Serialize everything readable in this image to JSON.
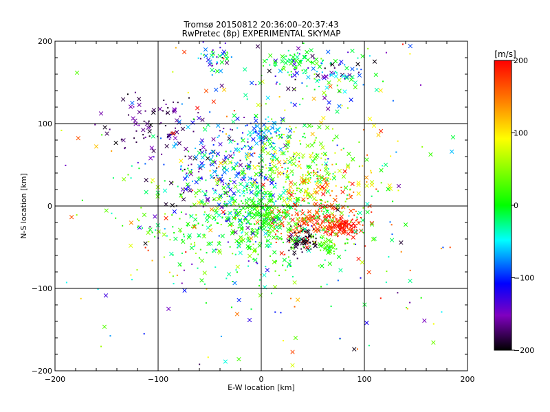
{
  "chart_data": {
    "type": "scatter",
    "title": "Tromsø 20150812 20:36:00–20:37:43",
    "subtitle": "RwPretec (8p) EXPERIMENTAL SKYMAP",
    "xlabel": "E-W location [km]",
    "ylabel": "N-S location [km]",
    "xlim": [
      -200,
      200
    ],
    "ylim": [
      -200,
      200
    ],
    "xticks": [
      "−200",
      "−100",
      "0",
      "100",
      "200"
    ],
    "yticks": [
      "−200",
      "−100",
      "0",
      "100",
      "200"
    ],
    "grid": true,
    "colorbar": {
      "label": "[m/s]",
      "range": [
        -200,
        200
      ],
      "ticks": [
        "200",
        "100",
        "0",
        "−100",
        "−200"
      ],
      "colormap": "rainbow (black → purple → blue → cyan → green → yellow → red)"
    },
    "markers": [
      "cross",
      "dot"
    ],
    "clusters": [
      {
        "x": -45,
        "y": 180,
        "sx": 8,
        "sy": 8,
        "n": 40,
        "v": [
          -200,
          80
        ]
      },
      {
        "x": 60,
        "y": 160,
        "sx": 30,
        "sy": 15,
        "n": 120,
        "v": [
          -200,
          50
        ]
      },
      {
        "x": 35,
        "y": 175,
        "sx": 15,
        "sy": 6,
        "n": 50,
        "v": [
          -30,
          20
        ]
      },
      {
        "x": -110,
        "y": 100,
        "sx": 25,
        "sy": 20,
        "n": 80,
        "v": [
          -200,
          -150
        ]
      },
      {
        "x": -50,
        "y": 50,
        "sx": 30,
        "sy": 30,
        "n": 160,
        "v": [
          -200,
          -60
        ]
      },
      {
        "x": 0,
        "y": 90,
        "sx": 12,
        "sy": 10,
        "n": 60,
        "v": [
          -110,
          -30
        ]
      },
      {
        "x": -10,
        "y": 40,
        "sx": 20,
        "sy": 40,
        "n": 140,
        "v": [
          -120,
          0
        ]
      },
      {
        "x": 35,
        "y": 50,
        "sx": 30,
        "sy": 30,
        "n": 220,
        "v": [
          -20,
          120
        ]
      },
      {
        "x": 60,
        "y": 20,
        "sx": 25,
        "sy": 15,
        "n": 120,
        "v": [
          40,
          200
        ]
      },
      {
        "x": 55,
        "y": -20,
        "sx": 25,
        "sy": 10,
        "n": 180,
        "v": [
          150,
          200
        ]
      },
      {
        "x": 80,
        "y": -25,
        "sx": 7,
        "sy": 6,
        "n": 50,
        "v": [
          180,
          200
        ]
      },
      {
        "x": 40,
        "y": -42,
        "sx": 8,
        "sy": 8,
        "n": 60,
        "v": [
          -200,
          -180
        ]
      },
      {
        "x": -10,
        "y": -20,
        "sx": 55,
        "sy": 35,
        "n": 450,
        "v": [
          -40,
          60
        ]
      },
      {
        "x": 0,
        "y": -10,
        "sx": 15,
        "sy": 12,
        "n": 140,
        "v": [
          -10,
          30
        ]
      },
      {
        "x": 65,
        "y": -50,
        "sx": 5,
        "sy": 4,
        "n": 30,
        "v": [
          10,
          40
        ]
      },
      {
        "x": 0,
        "y": 0,
        "sx": 110,
        "sy": 110,
        "n": 320,
        "v": [
          -200,
          200
        ]
      }
    ]
  }
}
